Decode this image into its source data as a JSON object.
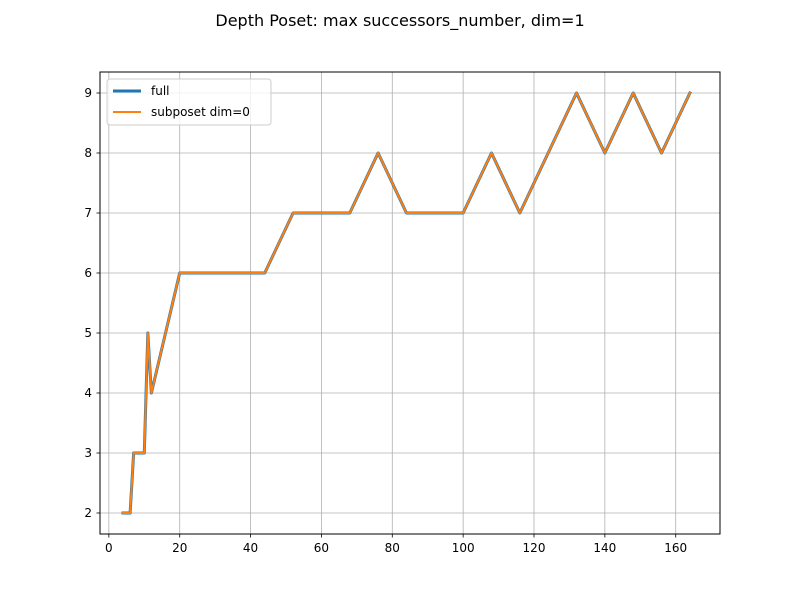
{
  "chart_data": {
    "type": "line",
    "title": "Depth Poset: max successors_number, dim=1",
    "xlabel": "",
    "ylabel": "",
    "xlim": [
      -2.5,
      172.5
    ],
    "ylim": [
      1.65,
      9.35
    ],
    "xticks": [
      0,
      20,
      40,
      60,
      80,
      100,
      120,
      140,
      160
    ],
    "yticks": [
      2,
      3,
      4,
      5,
      6,
      7,
      8,
      9
    ],
    "grid": true,
    "legend_position": "top-left",
    "x": [
      4,
      6,
      7,
      10,
      11,
      12,
      20,
      44,
      52,
      68,
      76,
      84,
      100,
      108,
      116,
      132,
      140,
      148,
      156,
      164
    ],
    "series": [
      {
        "name": "full",
        "color": "#1f77b4",
        "values": [
          2,
          2,
          3,
          3,
          5,
          4,
          6,
          6,
          7,
          7,
          8,
          7,
          7,
          8,
          7,
          9,
          8,
          9,
          8,
          9
        ]
      },
      {
        "name": "subposet dim=0",
        "color": "#ff7f0e",
        "values": [
          2,
          2,
          3,
          3,
          5,
          4,
          6,
          6,
          7,
          7,
          8,
          7,
          7,
          8,
          7,
          9,
          8,
          9,
          8,
          9
        ]
      }
    ]
  }
}
